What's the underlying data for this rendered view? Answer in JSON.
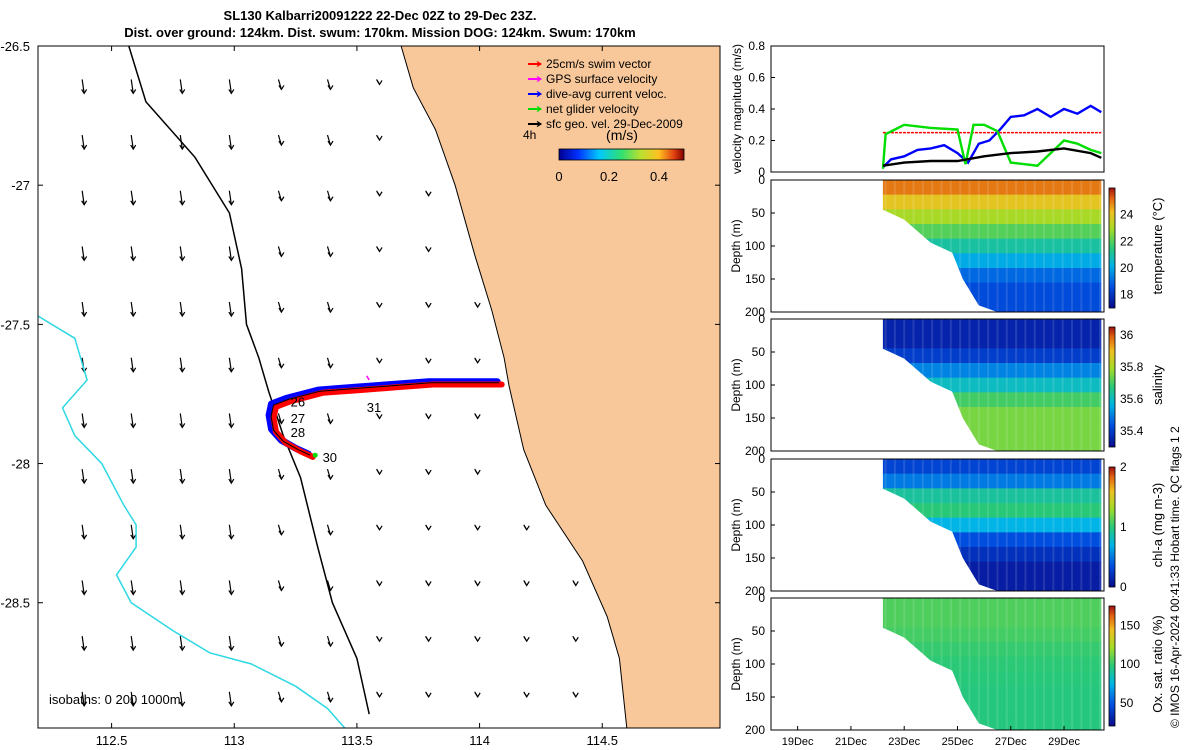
{
  "title_line1": "SL130 Kalbarri20091222 22-Dec 02Z to 29-Dec 23Z.",
  "title_line2": "Dist. over ground: 124km. Dist. swum: 170km. Mission DOG: 124km. Swum: 170km",
  "credit": "© IMOS 16-Apr-2024 00:41:33 Hobart time. QC flags 1 2",
  "colors": {
    "land": "#f8c89a",
    "isobath": "#000000",
    "deep_isobath": "#2ed8e4",
    "swim": "#ff0000",
    "gps": "#ff00ff",
    "current": "#0000ff",
    "net": "#00dd00",
    "geo": "#000000"
  },
  "chart_data": [
    {
      "name": "map",
      "type": "scatter",
      "xlabel": "",
      "ylabel": "",
      "xlim": [
        112.2,
        114.98
      ],
      "ylim": [
        -28.95,
        -26.5
      ],
      "xticks": [
        "112.5",
        "113",
        "113.5",
        "114",
        "114.5"
      ],
      "xtick_values": [
        112.5,
        113.0,
        113.5,
        114.0,
        114.5
      ],
      "yticks": [
        "-26.5",
        "-27",
        "-27.5",
        "-28",
        "-28.5"
      ],
      "ytick_values": [
        -26.5,
        -27.0,
        -27.5,
        -28.0,
        -28.5
      ],
      "legend": {
        "placement": "top-right",
        "items": [
          "25cm/s swim vector",
          "GPS surface velocity",
          "dive-avg current veloc.",
          "net glider velocity",
          "sfc geo. vel. 29-Dec-2009"
        ],
        "colors": [
          "#ff0000",
          "#ff00ff",
          "#0000ff",
          "#00dd00",
          "#000000"
        ]
      },
      "scale_label": "4h",
      "colorbar": {
        "label": "(m/s)",
        "ticks": [
          "0",
          "0.2",
          "0.4"
        ],
        "min": 0,
        "max": 0.5
      },
      "isobaths_label": "isobaths: 0   200  1000m",
      "day_labels": [
        {
          "text": "26",
          "lon": 113.23,
          "lat": -27.78
        },
        {
          "text": "27",
          "lon": 113.23,
          "lat": -27.84
        },
        {
          "text": "28",
          "lon": 113.23,
          "lat": -27.89
        },
        {
          "text": "30",
          "lon": 113.36,
          "lat": -27.98
        },
        {
          "text": "31",
          "lon": 113.54,
          "lat": -27.8
        }
      ],
      "track_points": [
        [
          114.08,
          -27.71
        ],
        [
          113.95,
          -27.71
        ],
        [
          113.8,
          -27.71
        ],
        [
          113.65,
          -27.72
        ],
        [
          113.5,
          -27.73
        ],
        [
          113.35,
          -27.74
        ],
        [
          113.22,
          -27.77
        ],
        [
          113.16,
          -27.79
        ],
        [
          113.15,
          -27.83
        ],
        [
          113.16,
          -27.88
        ],
        [
          113.2,
          -27.92
        ],
        [
          113.26,
          -27.95
        ],
        [
          113.31,
          -27.97
        ]
      ],
      "coastline": [
        [
          113.68,
          -26.5
        ],
        [
          113.73,
          -26.65
        ],
        [
          113.82,
          -26.8
        ],
        [
          113.9,
          -27.0
        ],
        [
          113.98,
          -27.25
        ],
        [
          114.05,
          -27.45
        ],
        [
          114.1,
          -27.62
        ],
        [
          114.12,
          -27.72
        ],
        [
          114.18,
          -27.95
        ],
        [
          114.27,
          -28.15
        ],
        [
          114.42,
          -28.35
        ],
        [
          114.52,
          -28.55
        ],
        [
          114.57,
          -28.7
        ],
        [
          114.6,
          -28.95
        ]
      ],
      "isobath_200": [
        [
          112.57,
          -26.5
        ],
        [
          112.64,
          -26.7
        ],
        [
          112.84,
          -26.9
        ],
        [
          112.98,
          -27.1
        ],
        [
          113.03,
          -27.3
        ],
        [
          113.05,
          -27.5
        ],
        [
          113.1,
          -27.62
        ],
        [
          113.14,
          -27.74
        ],
        [
          113.2,
          -27.9
        ],
        [
          113.27,
          -28.05
        ],
        [
          113.34,
          -28.3
        ],
        [
          113.4,
          -28.5
        ],
        [
          113.5,
          -28.7
        ],
        [
          113.55,
          -28.9
        ]
      ],
      "isobath_1000": [
        [
          112.2,
          -27.47
        ],
        [
          112.35,
          -27.55
        ],
        [
          112.4,
          -27.7
        ],
        [
          112.3,
          -27.8
        ],
        [
          112.35,
          -27.9
        ],
        [
          112.46,
          -28.0
        ],
        [
          112.55,
          -28.15
        ],
        [
          112.6,
          -28.22
        ],
        [
          112.6,
          -28.3
        ],
        [
          112.52,
          -28.4
        ],
        [
          112.58,
          -28.5
        ],
        [
          112.75,
          -28.6
        ],
        [
          112.9,
          -28.68
        ],
        [
          113.07,
          -28.72
        ],
        [
          113.25,
          -28.8
        ],
        [
          113.38,
          -28.88
        ],
        [
          113.45,
          -28.95
        ]
      ]
    },
    {
      "name": "velocity",
      "type": "line",
      "ylabel": "velocity magnitude (m/s)",
      "ylim": [
        0,
        0.8
      ],
      "yticks": [
        "0",
        "0.2",
        "0.4",
        "0.6",
        "0.8"
      ],
      "xlim_days": [
        18.0,
        30.5
      ],
      "series": [
        {
          "name": "swim",
          "color": "#ff0000",
          "x": [
            22.2,
            30.4
          ],
          "values": [
            0.25,
            0.25
          ]
        },
        {
          "name": "current",
          "color": "#0000ff",
          "x": [
            22.2,
            22.5,
            23.0,
            23.5,
            24.0,
            24.5,
            25.0,
            25.4,
            25.8,
            26.2,
            26.6,
            27.0,
            27.5,
            28.0,
            28.5,
            29.0,
            29.5,
            30.0,
            30.4
          ],
          "values": [
            0.03,
            0.08,
            0.1,
            0.14,
            0.15,
            0.17,
            0.12,
            0.06,
            0.18,
            0.2,
            0.27,
            0.35,
            0.36,
            0.4,
            0.35,
            0.4,
            0.37,
            0.42,
            0.38
          ]
        },
        {
          "name": "net",
          "color": "#00dd00",
          "x": [
            22.2,
            22.3,
            23.0,
            24.0,
            25.0,
            25.3,
            25.6,
            26.0,
            26.5,
            27.0,
            28.0,
            28.5,
            29.0,
            29.5,
            30.0,
            30.4
          ],
          "values": [
            0.02,
            0.24,
            0.3,
            0.28,
            0.27,
            0.05,
            0.3,
            0.3,
            0.26,
            0.06,
            0.04,
            0.12,
            0.2,
            0.18,
            0.14,
            0.12
          ]
        },
        {
          "name": "geo",
          "color": "#000000",
          "x": [
            22.2,
            23.0,
            24.0,
            25.0,
            26.0,
            27.0,
            28.0,
            29.0,
            30.0,
            30.4
          ],
          "values": [
            0.04,
            0.06,
            0.07,
            0.07,
            0.1,
            0.12,
            0.13,
            0.15,
            0.12,
            0.09
          ]
        }
      ]
    },
    {
      "name": "temperature",
      "type": "heatmap",
      "ylabel": "Depth (m)",
      "ylim": [
        200,
        0
      ],
      "yticks": [
        "0",
        "50",
        "100",
        "150",
        "200"
      ],
      "colorbar_label": "temperature (°C)",
      "colorbar_ticks": [
        "18",
        "20",
        "22",
        "24"
      ],
      "clim": [
        17,
        26
      ],
      "levels": [
        25,
        24,
        23,
        22,
        21,
        20,
        19,
        18.5,
        18.5
      ]
    },
    {
      "name": "salinity",
      "type": "heatmap",
      "ylabel": "Depth (m)",
      "ylim": [
        200,
        0
      ],
      "yticks": [
        "0",
        "50",
        "100",
        "150",
        "200"
      ],
      "colorbar_label": "salinity",
      "colorbar_ticks": [
        "35.4",
        "35.6",
        "35.8",
        "36"
      ],
      "clim": [
        35.3,
        36.05
      ],
      "levels": [
        35.35,
        35.35,
        35.4,
        35.5,
        35.6,
        35.7,
        35.75,
        35.75,
        35.75
      ]
    },
    {
      "name": "chl-a",
      "type": "heatmap",
      "ylabel": "Depth (m)",
      "ylim": [
        200,
        0
      ],
      "yticks": [
        "0",
        "50",
        "100",
        "150",
        "200"
      ],
      "colorbar_label": "chl-a (mg m-3)",
      "colorbar_ticks": [
        "0",
        "1",
        "2"
      ],
      "clim": [
        0,
        2
      ],
      "levels": [
        0.3,
        0.5,
        0.9,
        1.0,
        0.7,
        0.35,
        0.2,
        0.1,
        0.1
      ]
    },
    {
      "name": "oxygen",
      "type": "heatmap",
      "ylabel": "Depth (m)",
      "ylim": [
        200,
        0
      ],
      "yticks": [
        "0",
        "50",
        "100",
        "150",
        "200"
      ],
      "colorbar_label": "Ox. sat. ratio (%)",
      "colorbar_ticks": [
        "50",
        "100",
        "150"
      ],
      "clim": [
        20,
        175
      ],
      "levels": [
        105,
        105,
        103,
        100,
        98,
        97,
        96,
        96,
        96
      ],
      "xlabel_ticks": [
        "19Dec",
        "21Dec",
        "23Dec",
        "25Dec",
        "27Dec",
        "29Dec"
      ],
      "xtick_values": [
        19,
        21,
        23,
        25,
        27,
        29
      ]
    }
  ]
}
